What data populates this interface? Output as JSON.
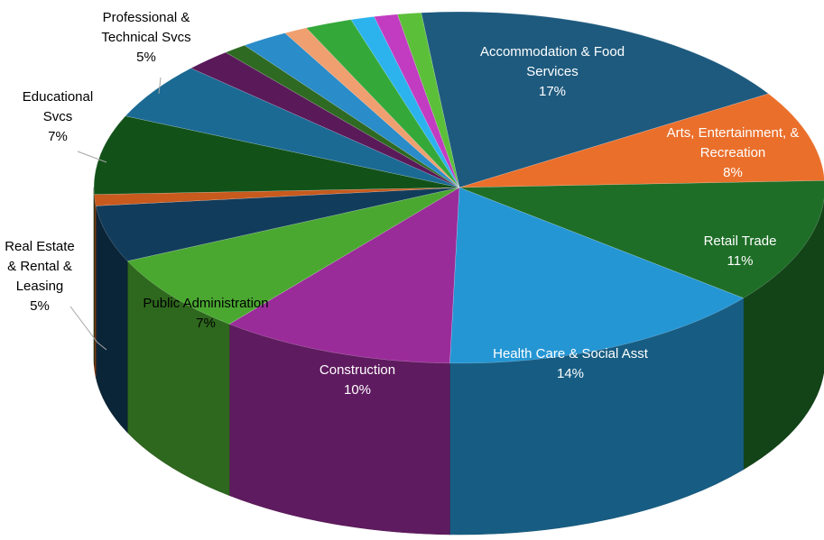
{
  "chart_data": {
    "type": "pie",
    "style": "3d",
    "slices": [
      {
        "label": "Accommodation & Food Services",
        "value": 17,
        "value_label": "17%",
        "color": "#1e5a7e",
        "label_lines": [
          "Accommodation & Food",
          "Services"
        ]
      },
      {
        "label": "Arts, Entertainment, & Recreation",
        "value": 8,
        "value_label": "8%",
        "color": "#ea6f2b",
        "label_lines": [
          "Arts, Entertainment, &",
          "Recreation"
        ]
      },
      {
        "label": "Retail Trade",
        "value": 11,
        "value_label": "11%",
        "color": "#1e6e27",
        "label_lines": [
          "Retail Trade"
        ]
      },
      {
        "label": "Health Care & Social Asst",
        "value": 14,
        "value_label": "14%",
        "color": "#2596d4",
        "label_lines": [
          "Health Care & Social Asst"
        ]
      },
      {
        "label": "Construction",
        "value": 10,
        "value_label": "10%",
        "color": "#9a2c99",
        "label_lines": [
          "Construction"
        ]
      },
      {
        "label": "Public Administration",
        "value": 7,
        "value_label": "7%",
        "color": "#4aa831",
        "label_lines": [
          "Public Administration"
        ]
      },
      {
        "label": "Real Estate & Rental & Leasing",
        "value": 5,
        "value_label": "5%",
        "color": "#123c5b",
        "label_lines": [
          "Real Estate",
          "& Rental &",
          "Leasing"
        ]
      },
      {
        "label": "",
        "value": 1,
        "value_label": "",
        "color": "#c85a1e",
        "label_lines": []
      },
      {
        "label": "Educational Svcs",
        "value": 7,
        "value_label": "7%",
        "color": "#125219",
        "label_lines": [
          "Educational",
          "Svcs"
        ]
      },
      {
        "label": "Professional & Technical Svcs",
        "value": 5,
        "value_label": "5%",
        "color": "#1a6a94",
        "label_lines": [
          "Professional &",
          "Technical Svcs"
        ]
      },
      {
        "label": "",
        "value": 2,
        "value_label": "",
        "color": "#5a1a5a",
        "label_lines": []
      },
      {
        "label": "",
        "value": 1,
        "value_label": "",
        "color": "#2e6a22",
        "label_lines": []
      },
      {
        "label": "",
        "value": 2,
        "value_label": "",
        "color": "#2a8cc8",
        "label_lines": []
      },
      {
        "label": "",
        "value": 1,
        "value_label": "",
        "color": "#f0a070",
        "label_lines": []
      },
      {
        "label": "",
        "value": 2,
        "value_label": "",
        "color": "#35a83a",
        "label_lines": []
      },
      {
        "label": "",
        "value": 1,
        "value_label": "",
        "color": "#2cb3ee",
        "label_lines": []
      },
      {
        "label": "",
        "value": 1,
        "value_label": "",
        "color": "#c23cc2",
        "label_lines": []
      },
      {
        "label": "",
        "value": 1,
        "value_label": "",
        "color": "#5cbf3a",
        "label_lines": []
      }
    ],
    "title": "",
    "legend": "none"
  }
}
